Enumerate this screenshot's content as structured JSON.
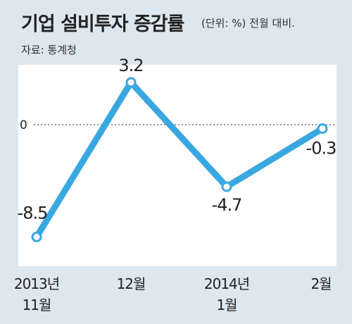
{
  "header": {
    "title": "기업 설비투자 증감률",
    "unit": "(단위: %)  전월 대비.",
    "source": "자료: 통계청"
  },
  "chart_data": {
    "type": "line",
    "categories": [
      {
        "line1": "2013년",
        "line2": "11월"
      },
      {
        "line1": "12월",
        "line2": ""
      },
      {
        "line1": "2014년",
        "line2": "1월"
      },
      {
        "line1": "2월",
        "line2": ""
      }
    ],
    "series": [
      {
        "values": [
          -8.5,
          3.2,
          -4.7,
          -0.3
        ],
        "labels": [
          "-8.5",
          "3.2",
          "-4.7",
          "-0.3"
        ]
      }
    ],
    "ylim": [
      -10,
      5
    ],
    "reference_line": {
      "value": 0,
      "label": "0",
      "style": "dotted"
    },
    "line_color": "#3aa8e0",
    "grid": false
  }
}
